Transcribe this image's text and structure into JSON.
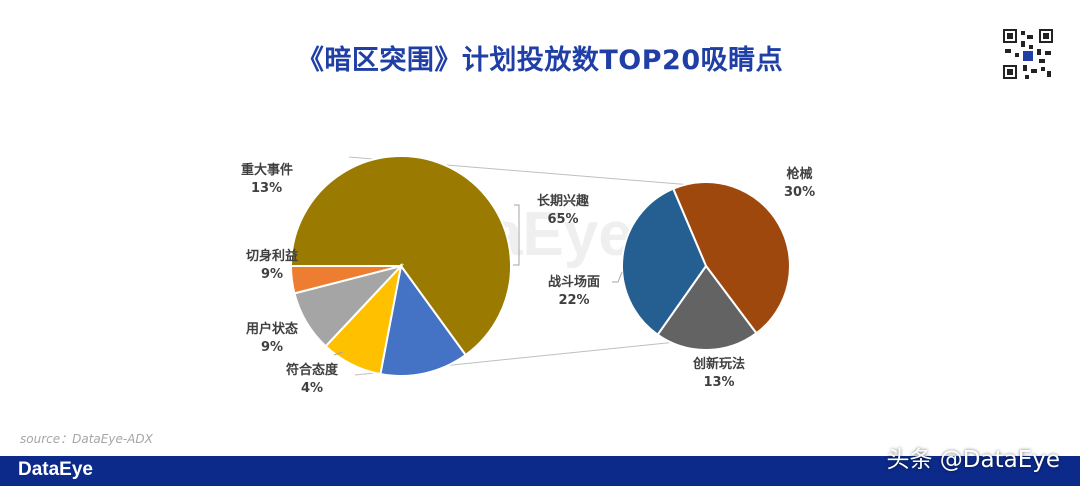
{
  "title": "《暗区突围》计划投放数TOP20吸睛点",
  "source": "source：DataEye-ADX",
  "footer_logo": "DataEye",
  "watermark": "头条 @DataEye",
  "colors": {
    "footer": "#0b2a8a",
    "title": "#1f3fa6"
  },
  "chart_data": [
    {
      "type": "pie",
      "slices": [
        {
          "label": "长期兴趣",
          "value": 65,
          "display": "65%",
          "color": "#9a7a00"
        },
        {
          "label": "重大事件",
          "value": 13,
          "display": "13%",
          "color": "#4472c4"
        },
        {
          "label": "切身利益",
          "value": 9,
          "display": "9%",
          "color": "#ffc000"
        },
        {
          "label": "用户状态",
          "value": 9,
          "display": "9%",
          "color": "#a5a5a5"
        },
        {
          "label": "符合态度",
          "value": 4,
          "display": "4%",
          "color": "#ed7d31"
        }
      ]
    },
    {
      "type": "pie",
      "slices": [
        {
          "label": "枪械",
          "value": 30,
          "display": "30%",
          "color": "#9e480e"
        },
        {
          "label": "创新玩法",
          "value": 13,
          "display": "13%",
          "color": "#636363"
        },
        {
          "label": "战斗场面",
          "value": 22,
          "display": "22%",
          "color": "#255e91"
        }
      ]
    }
  ]
}
